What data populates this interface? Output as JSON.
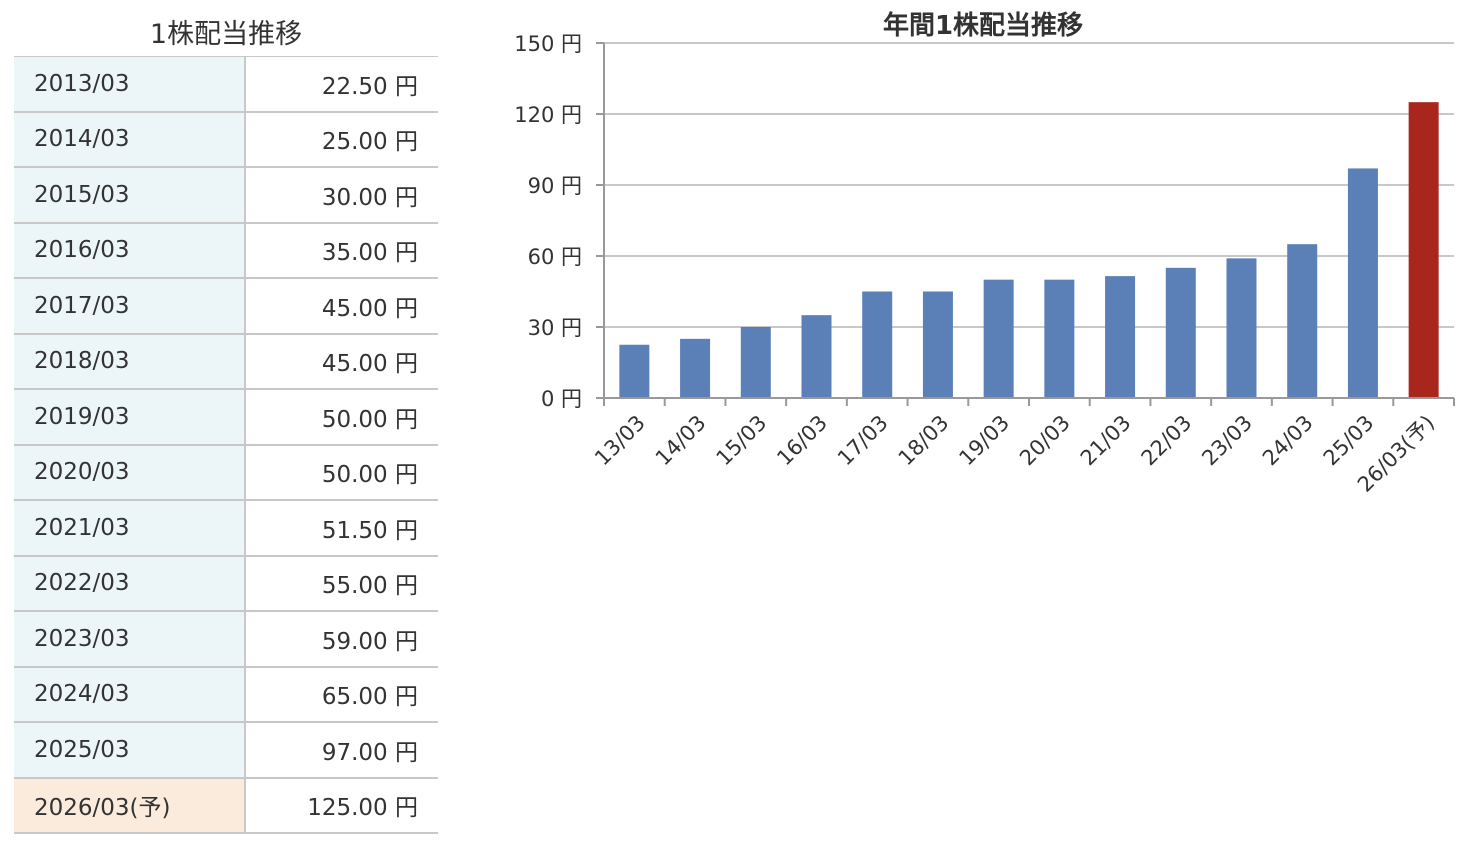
{
  "table": {
    "title": "1株配当推移",
    "rows": [
      {
        "period": "2013/03",
        "value": "22.50 円"
      },
      {
        "period": "2014/03",
        "value": "25.00 円"
      },
      {
        "period": "2015/03",
        "value": "30.00 円"
      },
      {
        "period": "2016/03",
        "value": "35.00 円"
      },
      {
        "period": "2017/03",
        "value": "45.00 円"
      },
      {
        "period": "2018/03",
        "value": "45.00 円"
      },
      {
        "period": "2019/03",
        "value": "50.00 円"
      },
      {
        "period": "2020/03",
        "value": "50.00 円"
      },
      {
        "period": "2021/03",
        "value": "51.50 円"
      },
      {
        "period": "2022/03",
        "value": "55.00 円"
      },
      {
        "period": "2023/03",
        "value": "59.00 円"
      },
      {
        "period": "2024/03",
        "value": "65.00 円"
      },
      {
        "period": "2025/03",
        "value": "97.00 円"
      },
      {
        "period": "2026/03(予)",
        "value": "125.00 円",
        "forecast": true
      }
    ],
    "colors": {
      "date_bg": "#ecf6f8",
      "forecast_bg": "#fbebdd",
      "border": "#c8c8c8"
    }
  },
  "chart_data": {
    "type": "bar",
    "title": "年間1株配当推移",
    "categories": [
      "13/03",
      "14/03",
      "15/03",
      "16/03",
      "17/03",
      "18/03",
      "19/03",
      "20/03",
      "21/03",
      "22/03",
      "23/03",
      "24/03",
      "25/03",
      "26/03(予)"
    ],
    "values": [
      22.5,
      25,
      30,
      35,
      45,
      45,
      50,
      50,
      51.5,
      55,
      59,
      65,
      97,
      125
    ],
    "forecast_index": 13,
    "ylim": [
      0,
      150
    ],
    "yticks": [
      0,
      30,
      60,
      90,
      120,
      150
    ],
    "ytick_labels": [
      "0 円",
      "30 円",
      "60 円",
      "90 円",
      "120 円",
      "150 円"
    ],
    "xlabel": "",
    "ylabel": "",
    "grid": true,
    "colors": {
      "bar": "#5a80b7",
      "forecast_bar": "#a9261c",
      "grid": "#c8c8c8"
    }
  }
}
